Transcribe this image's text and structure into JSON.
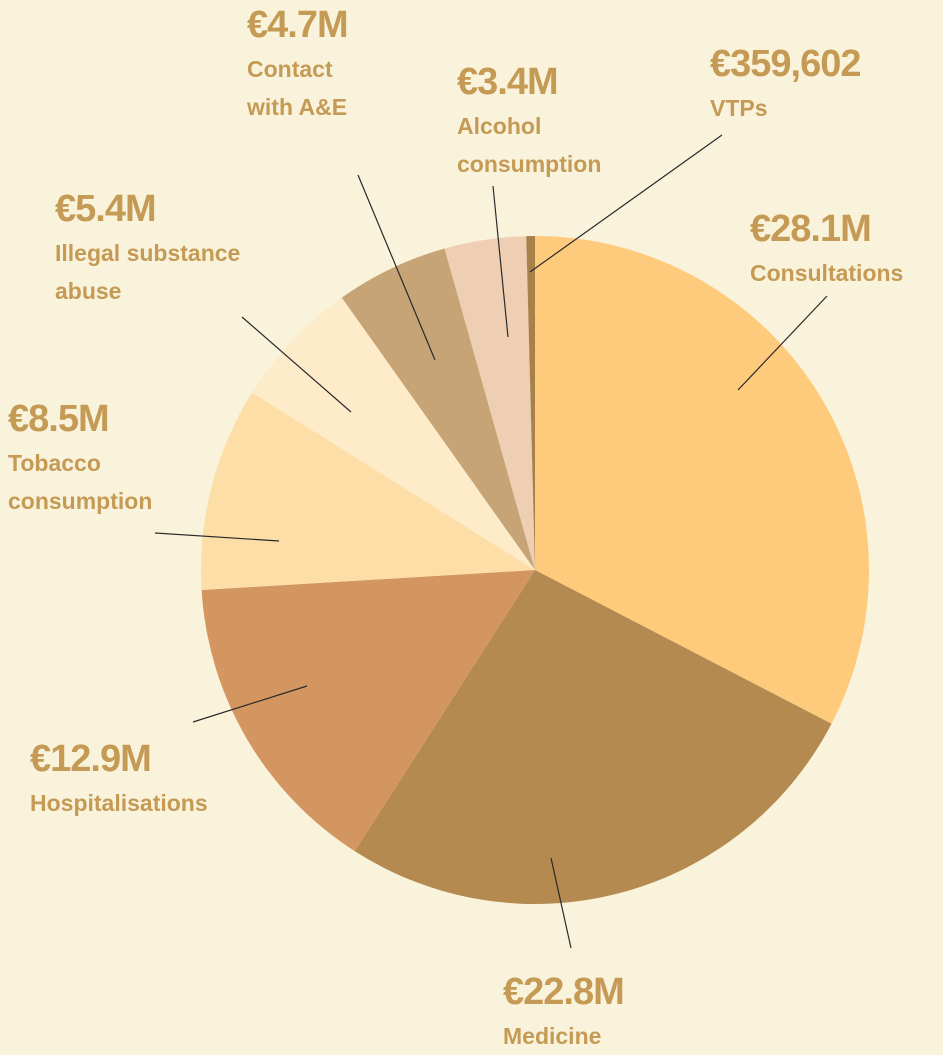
{
  "chart_data": {
    "type": "pie",
    "categories": [
      "Consultations",
      "Medicine",
      "Hospitalisations",
      "Tobacco consumption",
      "Illegal substance abuse",
      "Contact with A&E",
      "Alcohol consumption",
      "VTPs"
    ],
    "values": [
      28100000,
      22800000,
      12900000,
      8500000,
      5400000,
      4700000,
      3400000,
      359602
    ],
    "value_labels": [
      "€28.1M",
      "€22.8M",
      "€12.9M",
      "€8.5M",
      "€5.4M",
      "€4.7M",
      "€3.4M",
      "€359,602"
    ],
    "colors": [
      "#fecb7c",
      "#b48a50",
      "#d49660",
      "#fddea6",
      "#fdebc9",
      "#c7a475",
      "#eecfb3",
      "#a8814a"
    ]
  }
}
